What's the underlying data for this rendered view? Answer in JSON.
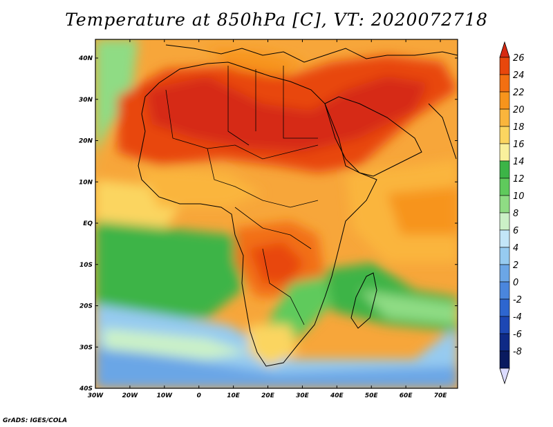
{
  "title": "Temperature at 850hPa [C], VT: 2020072718",
  "credit": "GrADS: IGES/COLA",
  "axes": {
    "lon_labels": [
      "30W",
      "20W",
      "10W",
      "0",
      "10E",
      "20E",
      "30E",
      "40E",
      "50E",
      "60E",
      "70E"
    ],
    "lat_labels": [
      "40N",
      "30N",
      "20N",
      "10N",
      "EQ",
      "10S",
      "20S",
      "30S",
      "40S"
    ]
  },
  "colorbar": {
    "labels": [
      "26",
      "24",
      "22",
      "20",
      "18",
      "16",
      "14",
      "12",
      "10",
      "8",
      "6",
      "4",
      "2",
      "0",
      "-2",
      "-4",
      "-6",
      "-8"
    ],
    "colors": [
      "#d62a12",
      "#e8470c",
      "#f26f12",
      "#f7941c",
      "#fab53c",
      "#fbd560",
      "#f9f09c",
      "#3cb447",
      "#5fca5c",
      "#8fdc84",
      "#cbf1c7",
      "#c3e6f8",
      "#96cbf0",
      "#6ba6e6",
      "#4a86dd",
      "#2e66cf",
      "#1d47b4",
      "#0f2a86",
      "#091a5f",
      "#dcdcff"
    ]
  },
  "legend": {
    "variable": "Temperature at 850hPa",
    "units": "C"
  }
}
